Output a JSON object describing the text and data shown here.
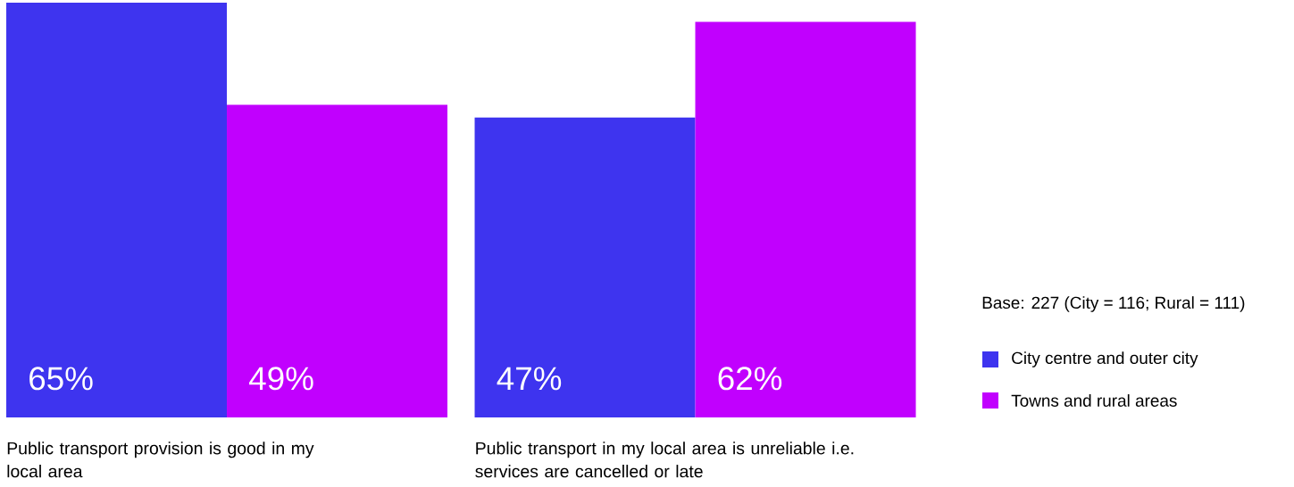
{
  "chart_data": {
    "type": "bar",
    "categories": [
      "Public transport provision is good in my local area",
      "Public transport in my local area is unreliable i.e. services are cancelled or late"
    ],
    "series": [
      {
        "name": "City centre and outer city",
        "color": "#3e34ef",
        "values": [
          65,
          47
        ],
        "value_labels": [
          "65%",
          "47%"
        ]
      },
      {
        "name": "Towns and rural areas",
        "color": "#c100fe",
        "values": [
          49,
          62
        ],
        "value_labels": [
          "49%",
          "62%"
        ]
      }
    ],
    "legend": "right",
    "annotations": [
      "Base: 227 (City = 116; Rural = 111)"
    ]
  }
}
